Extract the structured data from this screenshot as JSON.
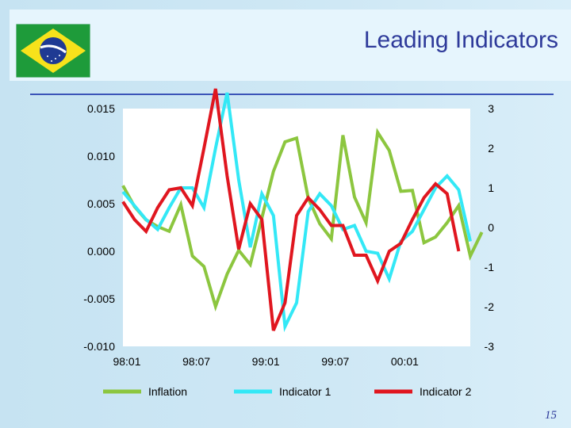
{
  "slide": {
    "title": "Leading Indicators",
    "page_number": "15",
    "flag": "brazil-flag"
  },
  "colors": {
    "inflation": "#8cc63f",
    "indicator1": "#33e8f6",
    "indicator2": "#e0161f",
    "title": "#2e3a9a",
    "rule": "#3b54b8"
  },
  "chart_data": {
    "type": "line",
    "title": "",
    "xlabel": "",
    "ylabel": "",
    "x_ticks": [
      "98:01",
      "98:07",
      "99:01",
      "99:07",
      "00:01"
    ],
    "x_tick_index": [
      0,
      6,
      12,
      18,
      24
    ],
    "left_axis": {
      "lim": [
        -0.01,
        0.015
      ],
      "ticks": [
        "0.015",
        "0.010",
        "0.005",
        "0.000",
        "-0.005",
        "-0.010"
      ],
      "tick_values": [
        0.015,
        0.01,
        0.005,
        0.0,
        -0.005,
        -0.01
      ]
    },
    "right_axis": {
      "lim": [
        -3,
        3
      ],
      "ticks": [
        "3",
        "2",
        "1",
        "0",
        "-1",
        "-2",
        "-3"
      ],
      "tick_values": [
        3,
        2,
        1,
        0,
        -1,
        -2,
        -3
      ]
    },
    "grid": false,
    "legend_position": "bottom",
    "series": [
      {
        "name": "Inflation",
        "axis": "left",
        "color": "#8cc63f",
        "values": [
          0.0069,
          0.0047,
          0.0033,
          0.0026,
          0.0021,
          0.0049,
          -0.0005,
          -0.0016,
          -0.0058,
          -0.0024,
          0.0001,
          -0.0014,
          0.0035,
          0.0084,
          0.0115,
          0.0119,
          0.0056,
          0.0029,
          0.0013,
          0.0122,
          0.0057,
          0.003,
          0.0125,
          0.0106,
          0.0063,
          0.0064,
          0.0009,
          0.0015,
          0.003,
          0.0048,
          -0.0005,
          0.002
        ]
      },
      {
        "name": "Indicator 1",
        "axis": "right",
        "color": "#33e8f6",
        "values": [
          0.9,
          0.55,
          0.2,
          -0.05,
          0.5,
          1.0,
          1.0,
          0.5,
          2.0,
          3.4,
          1.2,
          -0.5,
          0.85,
          0.3,
          -2.5,
          -1.9,
          0.4,
          0.85,
          0.55,
          -0.05,
          0.05,
          -0.6,
          -0.65,
          -1.3,
          -0.35,
          -0.1,
          0.45,
          1.0,
          1.3,
          0.95,
          -0.35
        ]
      },
      {
        "name": "Indicator 2",
        "axis": "right",
        "color": "#e0161f",
        "values": [
          0.65,
          0.2,
          -0.1,
          0.5,
          0.95,
          1.0,
          0.55,
          2.0,
          3.5,
          1.3,
          -0.55,
          0.6,
          0.2,
          -2.6,
          -1.9,
          0.3,
          0.75,
          0.45,
          0.05,
          0.05,
          -0.7,
          -0.7,
          -1.35,
          -0.6,
          -0.4,
          0.2,
          0.75,
          1.1,
          0.85,
          -0.6
        ]
      }
    ]
  }
}
